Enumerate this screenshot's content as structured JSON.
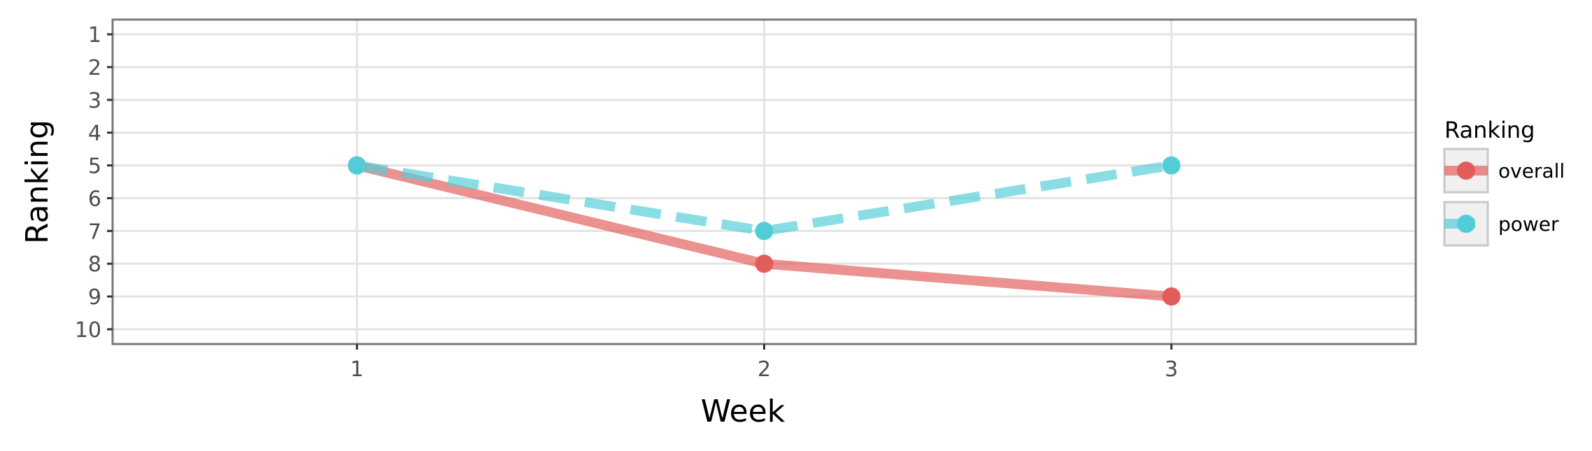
{
  "chart_data": {
    "type": "line",
    "x": [
      1,
      2,
      3
    ],
    "xlabel": "Week",
    "ylabel": "Ranking",
    "xlim": [
      0.4,
      3.6
    ],
    "ylim": [
      10.45,
      0.55
    ],
    "y_reversed": true,
    "xticks": [
      "1",
      "2",
      "3"
    ],
    "yticks": [
      "1",
      "2",
      "3",
      "4",
      "5",
      "6",
      "7",
      "8",
      "9",
      "10"
    ],
    "grid": true,
    "legend": {
      "title": "Ranking",
      "position": "right"
    },
    "series": [
      {
        "name": "overall",
        "values": [
          5,
          8,
          9
        ],
        "color": "#e15d5a",
        "line_style": "solid"
      },
      {
        "name": "power",
        "values": [
          5,
          7,
          5
        ],
        "color": "#52cdd8",
        "line_style": "dashed"
      }
    ]
  }
}
